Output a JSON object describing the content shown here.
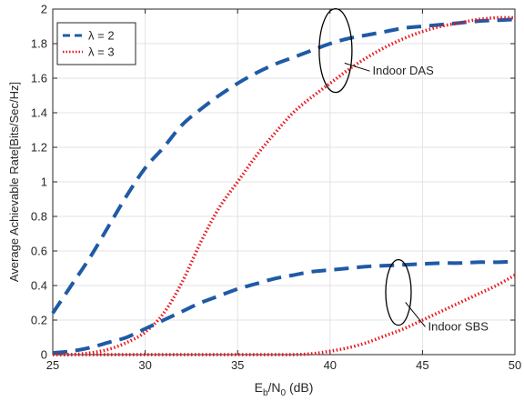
{
  "chart_data": {
    "type": "line",
    "title": "",
    "xlabel": {
      "main": "E",
      "sub1": "b",
      "mid": "/N",
      "sub2": "0",
      "tail": " (dB)"
    },
    "ylabel": "Average Achievable Rate[Bits/Sec/Hz]",
    "xlim": [
      25,
      50
    ],
    "ylim": [
      0,
      2
    ],
    "x_ticks": [
      25,
      30,
      35,
      40,
      45,
      50
    ],
    "y_ticks": [
      0,
      0.2,
      0.4,
      0.6,
      0.8,
      1,
      1.2,
      1.4,
      1.6,
      1.8,
      2
    ],
    "x_tick_labels": [
      "25",
      "30",
      "35",
      "40",
      "45",
      "50"
    ],
    "y_tick_labels": [
      "0",
      "0.2",
      "0.4",
      "0.6",
      "0.8",
      "1",
      "1.2",
      "1.4",
      "1.6",
      "1.8",
      "2"
    ],
    "grid": true,
    "legend_position": "top-left",
    "legend": [
      {
        "label": "λ = 2",
        "color": "#1f5aa6",
        "style": "dashed"
      },
      {
        "label": "λ = 3",
        "color": "#e8141b",
        "style": "dotted"
      }
    ],
    "series": [
      {
        "group": "Indoor DAS",
        "legend_index": 0,
        "color": "#1f5aa6",
        "style": "dashed",
        "x": [
          25,
          26,
          27,
          28,
          29,
          30,
          31,
          32,
          33,
          34,
          35,
          36,
          37,
          38,
          39,
          40,
          41,
          42,
          43,
          44,
          45,
          46,
          47,
          48,
          49,
          50
        ],
        "values": [
          0.24,
          0.4,
          0.56,
          0.74,
          0.92,
          1.08,
          1.2,
          1.33,
          1.42,
          1.5,
          1.57,
          1.63,
          1.68,
          1.72,
          1.76,
          1.8,
          1.83,
          1.85,
          1.87,
          1.89,
          1.9,
          1.91,
          1.92,
          1.93,
          1.935,
          1.94
        ]
      },
      {
        "group": "Indoor DAS",
        "legend_index": 1,
        "color": "#e8141b",
        "style": "dotted",
        "x": [
          25,
          26,
          27,
          28,
          29,
          30,
          31,
          32,
          33,
          34,
          35,
          36,
          37,
          38,
          39,
          40,
          41,
          42,
          43,
          44,
          45,
          46,
          47,
          48,
          49,
          50
        ],
        "values": [
          0.0,
          0.0,
          0.01,
          0.03,
          0.07,
          0.13,
          0.24,
          0.42,
          0.65,
          0.85,
          1.0,
          1.15,
          1.28,
          1.4,
          1.49,
          1.57,
          1.65,
          1.72,
          1.78,
          1.83,
          1.87,
          1.9,
          1.92,
          1.94,
          1.95,
          1.95
        ]
      },
      {
        "group": "Indoor SBS",
        "legend_index": 0,
        "color": "#1f5aa6",
        "style": "dashed",
        "x": [
          25,
          26,
          27,
          28,
          29,
          30,
          31,
          32,
          33,
          34,
          35,
          36,
          37,
          38,
          39,
          40,
          41,
          42,
          43,
          44,
          45,
          46,
          47,
          48,
          49,
          50
        ],
        "values": [
          0.01,
          0.02,
          0.04,
          0.07,
          0.1,
          0.15,
          0.2,
          0.25,
          0.3,
          0.34,
          0.38,
          0.41,
          0.44,
          0.46,
          0.48,
          0.49,
          0.5,
          0.51,
          0.515,
          0.52,
          0.525,
          0.53,
          0.53,
          0.535,
          0.535,
          0.54
        ]
      },
      {
        "group": "Indoor SBS",
        "legend_index": 1,
        "color": "#e8141b",
        "style": "dotted",
        "x": [
          25,
          26,
          27,
          28,
          29,
          30,
          31,
          32,
          33,
          34,
          35,
          36,
          37,
          38,
          39,
          40,
          41,
          42,
          43,
          44,
          45,
          46,
          47,
          48,
          49,
          50
        ],
        "values": [
          0,
          0,
          0,
          0,
          0,
          0,
          0,
          0,
          0,
          0,
          0,
          0,
          0,
          0,
          0.005,
          0.02,
          0.04,
          0.07,
          0.11,
          0.15,
          0.2,
          0.25,
          0.3,
          0.35,
          0.4,
          0.46
        ]
      }
    ],
    "annotations": [
      {
        "label": "Indoor DAS",
        "ellipse_center": [
          40.3,
          1.76
        ],
        "text_anchor": [
          42.3,
          1.62
        ]
      },
      {
        "label": "Indoor SBS",
        "ellipse_center": [
          43.7,
          0.36
        ],
        "text_anchor": [
          45.3,
          0.14
        ]
      }
    ]
  }
}
